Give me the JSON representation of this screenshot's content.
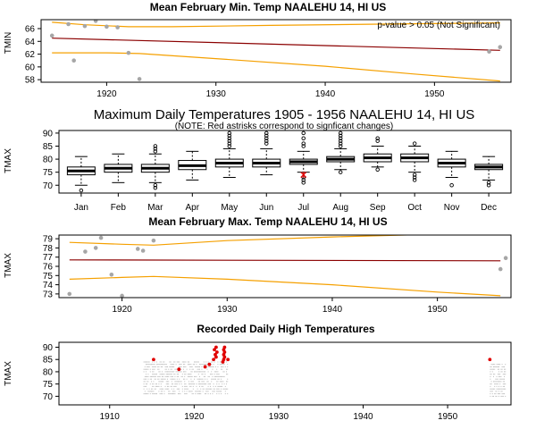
{
  "chart_data": [
    {
      "id": "p1",
      "type": "scatter",
      "title": "Mean February Min. Temp NAALEHU 14, HI US",
      "ylabel": "TMIN",
      "annotation": "p-value > 0.05 (Not Significant)",
      "xlim": [
        1914,
        1957
      ],
      "ylim": [
        57.6,
        67.4
      ],
      "xticks": [
        1920,
        1930,
        1940,
        1950
      ],
      "yticks": [
        58,
        60,
        62,
        64,
        66
      ],
      "points": [
        [
          1915,
          64.9
        ],
        [
          1916.5,
          66.7
        ],
        [
          1917,
          61.0
        ],
        [
          1918,
          66.4
        ],
        [
          1919,
          67.2
        ],
        [
          1920,
          66.3
        ],
        [
          1921,
          66.2
        ],
        [
          1922,
          62.2
        ],
        [
          1923,
          58.1
        ],
        [
          1955,
          62.4
        ],
        [
          1956,
          63.1
        ]
      ],
      "fit": [
        [
          1915,
          64.5
        ],
        [
          1956,
          62.6
        ]
      ],
      "band_upper": [
        [
          1915,
          67.0
        ],
        [
          1918,
          66.6
        ],
        [
          1922,
          66.3
        ],
        [
          1926,
          66.3
        ],
        [
          1935,
          66.5
        ],
        [
          1945,
          66.7
        ],
        [
          1956,
          66.9
        ]
      ],
      "band_lower": [
        [
          1915,
          62.2
        ],
        [
          1920,
          62.2
        ],
        [
          1923,
          62.1
        ],
        [
          1930,
          61.3
        ],
        [
          1940,
          60.1
        ],
        [
          1948,
          58.9
        ],
        [
          1956,
          57.8
        ]
      ]
    },
    {
      "id": "p2",
      "type": "box",
      "title": "Maximum Daily Temperatures 1905 - 1956 NAALEHU 14, HI US",
      "subtitle": "(NOTE: Red astrisks correspond to signficant changes)",
      "ylabel": "TMAX",
      "ylim": [
        67,
        91
      ],
      "yticks": [
        70,
        75,
        80,
        85,
        90
      ],
      "categories": [
        "Jan",
        "Feb",
        "Mar",
        "Apr",
        "May",
        "Jun",
        "Jul",
        "Aug",
        "Sep",
        "Oct",
        "Nov",
        "Dec"
      ],
      "boxes": [
        {
          "lo": 70,
          "q1": 74,
          "med": 75.5,
          "q3": 77,
          "hi": 81,
          "out": [
            68
          ]
        },
        {
          "lo": 71,
          "q1": 75,
          "med": 76.5,
          "q3": 78,
          "hi": 82,
          "out": []
        },
        {
          "lo": 71,
          "q1": 75,
          "med": 76.5,
          "q3": 78,
          "hi": 82,
          "out": [
            69,
            70,
            83,
            84,
            85
          ]
        },
        {
          "lo": 72,
          "q1": 76,
          "med": 77.5,
          "q3": 79.5,
          "hi": 83,
          "out": []
        },
        {
          "lo": 73,
          "q1": 77,
          "med": 78.5,
          "q3": 80,
          "hi": 84,
          "out": [
            85,
            86,
            87,
            88,
            89,
            90
          ]
        },
        {
          "lo": 74,
          "q1": 77,
          "med": 78.5,
          "q3": 80,
          "hi": 84,
          "out": [
            86,
            87,
            88,
            89,
            90
          ]
        },
        {
          "lo": 75,
          "q1": 78,
          "med": 79,
          "q3": 80,
          "hi": 83,
          "out": [
            71,
            72,
            73,
            85,
            86,
            88,
            90
          ]
        },
        {
          "lo": 76,
          "q1": 79,
          "med": 80,
          "q3": 81,
          "hi": 84,
          "out": [
            75,
            85,
            86,
            87,
            88,
            89,
            90
          ]
        },
        {
          "lo": 77,
          "q1": 79,
          "med": 80.5,
          "q3": 82,
          "hi": 85,
          "out": [
            76,
            87,
            88
          ]
        },
        {
          "lo": 75,
          "q1": 79,
          "med": 80.5,
          "q3": 82,
          "hi": 85,
          "out": [
            72,
            73,
            74,
            86
          ]
        },
        {
          "lo": 73,
          "q1": 77,
          "med": 78.5,
          "q3": 80,
          "hi": 83,
          "out": [
            70
          ]
        },
        {
          "lo": 72,
          "q1": 76,
          "med": 77,
          "q3": 78,
          "hi": 81,
          "out": [
            70,
            71
          ]
        }
      ],
      "significant": [
        {
          "month": "Jul",
          "value": 74
        }
      ]
    },
    {
      "id": "p3",
      "type": "scatter",
      "title": "Mean February Max. Temp NAALEHU 14, HI US",
      "ylabel": "TMAX",
      "xlim": [
        1914,
        1957
      ],
      "ylim": [
        72.6,
        79.4
      ],
      "xticks": [
        1920,
        1930,
        1940,
        1950
      ],
      "yticks": [
        73,
        74,
        75,
        76,
        77,
        78,
        79
      ],
      "points": [
        [
          1915,
          73.0
        ],
        [
          1916.5,
          77.6
        ],
        [
          1917.5,
          78.0
        ],
        [
          1918,
          79.1
        ],
        [
          1919,
          75.1
        ],
        [
          1920,
          72.8
        ],
        [
          1921.5,
          77.9
        ],
        [
          1922,
          77.7
        ],
        [
          1923,
          78.8
        ],
        [
          1956,
          75.7
        ],
        [
          1956.5,
          76.9
        ]
      ],
      "fit": [
        [
          1915,
          76.7
        ],
        [
          1956,
          76.6
        ]
      ],
      "band_upper": [
        [
          1915,
          78.6
        ],
        [
          1920,
          78.4
        ],
        [
          1923,
          78.3
        ],
        [
          1930,
          78.8
        ],
        [
          1940,
          79.2
        ],
        [
          1950,
          79.5
        ],
        [
          1956,
          79.7
        ]
      ],
      "band_lower": [
        [
          1915,
          74.6
        ],
        [
          1920,
          74.8
        ],
        [
          1923,
          74.9
        ],
        [
          1930,
          74.6
        ],
        [
          1940,
          74.0
        ],
        [
          1950,
          73.2
        ],
        [
          1956,
          72.8
        ]
      ]
    },
    {
      "id": "p4",
      "type": "scatter",
      "title": "Recorded Daily High Temperatures",
      "ylabel": "TMAX",
      "xlim": [
        1904,
        1957.5
      ],
      "ylim": [
        66.5,
        92
      ],
      "xticks": [
        1910,
        1920,
        1930,
        1940,
        1950
      ],
      "yticks": [
        70,
        75,
        80,
        85,
        90
      ],
      "gray_ranges": [
        [
          1914,
          1924,
          71,
          84
        ],
        [
          1955,
          1956.9,
          70,
          83
        ]
      ],
      "red_points": [
        [
          1915.2,
          85
        ],
        [
          1918.2,
          81
        ],
        [
          1921.3,
          82
        ],
        [
          1921.8,
          83
        ],
        [
          1922.3,
          85
        ],
        [
          1922.6,
          86
        ],
        [
          1922.5,
          87
        ],
        [
          1922.7,
          88
        ],
        [
          1922.4,
          89
        ],
        [
          1922.6,
          90
        ],
        [
          1923.4,
          84
        ],
        [
          1923.5,
          85
        ],
        [
          1923.6,
          86
        ],
        [
          1923.5,
          87
        ],
        [
          1923.6,
          88
        ],
        [
          1923.5,
          89
        ],
        [
          1923.6,
          90
        ],
        [
          1924,
          85
        ],
        [
          1955,
          85
        ]
      ]
    }
  ]
}
